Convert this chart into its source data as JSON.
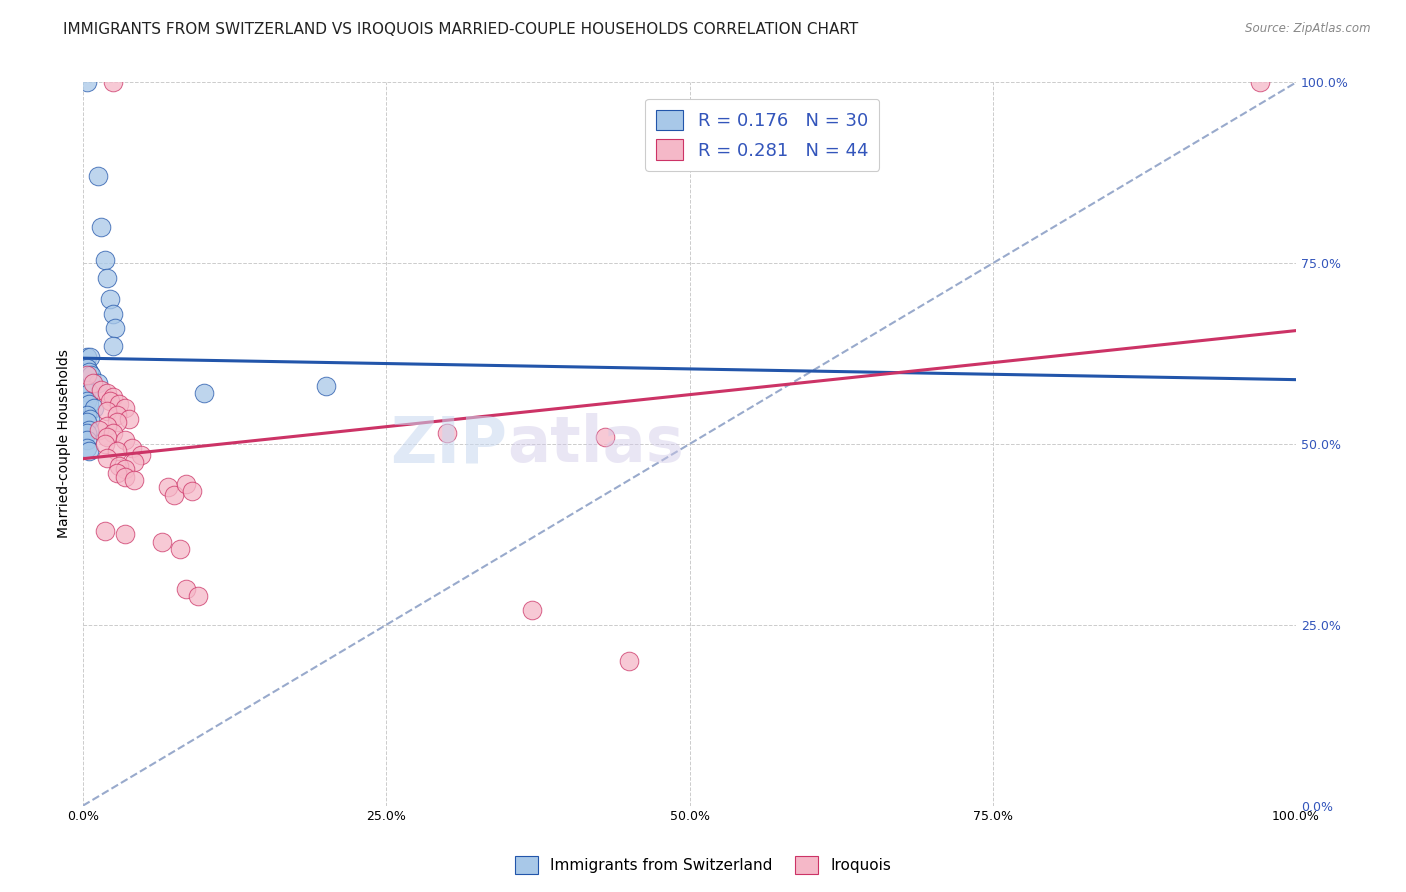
{
  "title": "IMMIGRANTS FROM SWITZERLAND VS IROQUOIS MARRIED-COUPLE HOUSEHOLDS CORRELATION CHART",
  "source": "Source: ZipAtlas.com",
  "ylabel": "Married-couple Households",
  "watermark": "ZIPatlas",
  "blue_R": "0.176",
  "blue_N": "30",
  "pink_R": "0.281",
  "pink_N": "44",
  "legend1": "Immigrants from Switzerland",
  "legend2": "Iroquois",
  "blue_color": "#a8c8e8",
  "pink_color": "#f5b8c8",
  "blue_line_color": "#2255aa",
  "pink_line_color": "#cc3366",
  "dashed_line_color": "#99aacc",
  "blue_scatter": [
    [
      0.3,
      100.0
    ],
    [
      1.2,
      87.0
    ],
    [
      1.5,
      80.0
    ],
    [
      1.8,
      75.5
    ],
    [
      2.0,
      73.0
    ],
    [
      2.2,
      70.0
    ],
    [
      2.5,
      68.0
    ],
    [
      2.6,
      66.0
    ],
    [
      2.5,
      63.5
    ],
    [
      0.3,
      62.0
    ],
    [
      0.6,
      62.0
    ],
    [
      0.3,
      60.5
    ],
    [
      0.5,
      60.0
    ],
    [
      0.7,
      59.5
    ],
    [
      1.2,
      58.5
    ],
    [
      0.3,
      57.5
    ],
    [
      0.5,
      57.0
    ],
    [
      0.3,
      56.0
    ],
    [
      0.5,
      55.5
    ],
    [
      0.9,
      55.0
    ],
    [
      0.3,
      54.0
    ],
    [
      0.6,
      53.5
    ],
    [
      0.3,
      53.0
    ],
    [
      0.5,
      52.0
    ],
    [
      0.3,
      51.5
    ],
    [
      0.3,
      50.5
    ],
    [
      0.3,
      49.5
    ],
    [
      0.5,
      49.0
    ],
    [
      20.0,
      58.0
    ],
    [
      10.0,
      57.0
    ]
  ],
  "pink_scatter": [
    [
      2.5,
      100.0
    ],
    [
      97.0,
      100.0
    ],
    [
      0.3,
      59.5
    ],
    [
      0.8,
      58.5
    ],
    [
      1.5,
      57.5
    ],
    [
      2.0,
      57.0
    ],
    [
      2.5,
      56.5
    ],
    [
      2.2,
      56.0
    ],
    [
      3.0,
      55.5
    ],
    [
      3.5,
      55.0
    ],
    [
      2.0,
      54.5
    ],
    [
      2.8,
      54.0
    ],
    [
      3.8,
      53.5
    ],
    [
      2.8,
      53.0
    ],
    [
      2.0,
      52.5
    ],
    [
      1.3,
      52.0
    ],
    [
      2.5,
      51.5
    ],
    [
      2.0,
      51.0
    ],
    [
      3.5,
      50.5
    ],
    [
      1.8,
      50.0
    ],
    [
      4.0,
      49.5
    ],
    [
      2.8,
      49.0
    ],
    [
      4.8,
      48.5
    ],
    [
      2.0,
      48.0
    ],
    [
      4.2,
      47.5
    ],
    [
      3.0,
      47.0
    ],
    [
      3.5,
      46.5
    ],
    [
      2.8,
      46.0
    ],
    [
      3.5,
      45.5
    ],
    [
      4.2,
      45.0
    ],
    [
      7.0,
      44.0
    ],
    [
      7.5,
      43.0
    ],
    [
      8.5,
      44.5
    ],
    [
      9.0,
      43.5
    ],
    [
      1.8,
      38.0
    ],
    [
      3.5,
      37.5
    ],
    [
      6.5,
      36.5
    ],
    [
      8.0,
      35.5
    ],
    [
      8.5,
      30.0
    ],
    [
      9.5,
      29.0
    ],
    [
      30.0,
      51.5
    ],
    [
      43.0,
      51.0
    ],
    [
      37.0,
      27.0
    ],
    [
      45.0,
      20.0
    ]
  ],
  "xlim": [
    0,
    100
  ],
  "ylim": [
    0,
    100
  ],
  "xticks": [
    0,
    25,
    50,
    75,
    100
  ],
  "yticks": [
    0,
    25,
    50,
    75,
    100
  ],
  "xtick_labels": [
    "0.0%",
    "25.0%",
    "50.0%",
    "75.0%",
    "100.0%"
  ],
  "ytick_labels": [
    "0.0%",
    "25.0%",
    "50.0%",
    "75.0%",
    "100.0%"
  ],
  "grid_color": "#cccccc",
  "background_color": "#ffffff",
  "title_fontsize": 11,
  "label_fontsize": 10,
  "tick_fontsize": 9,
  "right_tick_color": "#3355bb"
}
